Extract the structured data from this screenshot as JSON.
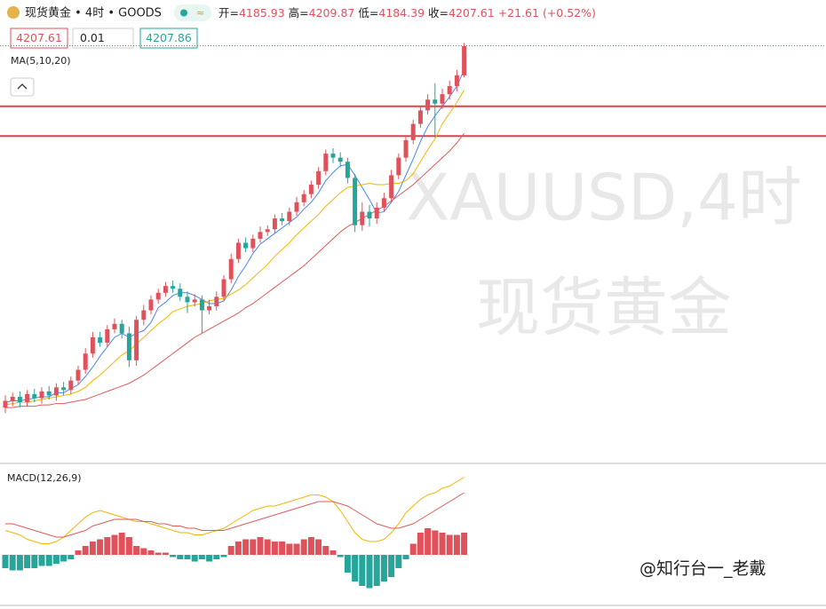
{
  "chart_data": {
    "type": "candlestick",
    "title": "现货黄金 • 4时 • GOODS",
    "labels": {
      "open": "开=",
      "high": "高=",
      "low": "低=",
      "close": "收="
    },
    "change": "+21.61",
    "change_pct": "(+0.52%)",
    "ask": 4207.86,
    "lot": 0.01,
    "up_color": "#e0525b",
    "down_color": "#26a69a",
    "ylim": [
      3900,
      4222
    ],
    "levels": [
      4163,
      4141
    ],
    "level_color": "#e0404a",
    "open": [
      3940,
      3945,
      3948,
      3944,
      3950,
      3947,
      3952,
      3949,
      3955,
      3953,
      3960,
      3968,
      3980,
      3992,
      3988,
      3998,
      4002,
      3995,
      3975,
      4005,
      4012,
      4020,
      4025,
      4030,
      4028,
      4022,
      4018,
      4020,
      4012,
      4015,
      4022,
      4035,
      4050,
      4062,
      4058,
      4065,
      4070,
      4072,
      4080,
      4078,
      4085,
      4092,
      4098,
      4105,
      4115,
      4128,
      4125,
      4122,
      4110,
      4075,
      4085,
      4080,
      4088,
      4095,
      4112,
      4125,
      4138,
      4150,
      4160,
      4168,
      4165,
      4172,
      4178,
      4185.93
    ],
    "high": [
      3949,
      3951,
      3952,
      3953,
      3954,
      3955,
      3956,
      3958,
      3959,
      3963,
      3971,
      3984,
      3996,
      3996,
      4001,
      4006,
      4005,
      4000,
      4008,
      4016,
      4023,
      4028,
      4033,
      4034,
      4032,
      4026,
      4024,
      4023,
      4020,
      4026,
      4038,
      4054,
      4065,
      4066,
      4068,
      4074,
      4075,
      4083,
      4084,
      4088,
      4096,
      4101,
      4108,
      4118,
      4131,
      4132,
      4129,
      4125,
      4113,
      4092,
      4090,
      4092,
      4099,
      4116,
      4128,
      4141,
      4153,
      4163,
      4172,
      4180,
      4176,
      4182,
      4190,
      4209.87
    ],
    "low": [
      3936,
      3941,
      3940,
      3941,
      3944,
      3943,
      3946,
      3945,
      3949,
      3950,
      3957,
      3965,
      3977,
      3985,
      3985,
      3995,
      3991,
      3970,
      3971,
      4001,
      4009,
      4017,
      4022,
      4025,
      4019,
      4010,
      4015,
      3995,
      4009,
      4012,
      4019,
      4032,
      4047,
      4055,
      4055,
      4062,
      4067,
      4069,
      4075,
      4075,
      4082,
      4089,
      4095,
      4102,
      4112,
      4121,
      4118,
      4106,
      4070,
      4071,
      4074,
      4076,
      4085,
      4092,
      4109,
      4122,
      4135,
      4147,
      4157,
      4140,
      4161,
      4168,
      4174,
      4184.39
    ],
    "close": [
      3945,
      3948,
      3944,
      3950,
      3947,
      3952,
      3949,
      3955,
      3953,
      3960,
      3968,
      3980,
      3992,
      3988,
      3998,
      4002,
      3995,
      3975,
      4005,
      4012,
      4020,
      4025,
      4030,
      4028,
      4022,
      4018,
      4020,
      4012,
      4015,
      4022,
      4035,
      4050,
      4062,
      4058,
      4065,
      4070,
      4072,
      4080,
      4078,
      4085,
      4092,
      4098,
      4105,
      4115,
      4128,
      4125,
      4122,
      4110,
      4075,
      4085,
      4080,
      4088,
      4095,
      4112,
      4125,
      4138,
      4150,
      4160,
      4168,
      4165,
      4172,
      4178,
      4186,
      4207.61
    ],
    "indicator": "MA(5,10,20)",
    "ma": [
      {
        "color": "#4a86e8",
        "values": [
          3944,
          3945,
          3945,
          3946,
          3947,
          3948,
          3948,
          3951,
          3951,
          3954,
          3957,
          3963,
          3970,
          3978,
          3985,
          3992,
          3995,
          3992,
          3995,
          3997,
          4003,
          4014,
          4018,
          4023,
          4025,
          4025,
          4023,
          4020,
          4017,
          4017,
          4019,
          4027,
          4037,
          4045,
          4054,
          4061,
          4065,
          4069,
          4073,
          4077,
          4081,
          4087,
          4092,
          4099,
          4108,
          4114,
          4119,
          4120,
          4112,
          4103,
          4094,
          4084,
          4085,
          4092,
          4100,
          4112,
          4124,
          4137,
          4148,
          4156,
          4163,
          4170,
          4178,
          4190
        ]
      },
      {
        "color": "#f2b600",
        "values": [
          3942,
          3943,
          3944,
          3944,
          3945,
          3946,
          3947,
          3948,
          3949,
          3950,
          3952,
          3955,
          3960,
          3964,
          3969,
          3974,
          3979,
          3982,
          3987,
          3992,
          3997,
          4002,
          4006,
          4011,
          4013,
          4015,
          4016,
          4017,
          4019,
          4020,
          4021,
          4024,
          4027,
          4031,
          4036,
          4041,
          4046,
          4052,
          4057,
          4062,
          4068,
          4073,
          4078,
          4083,
          4089,
          4094,
          4099,
          4103,
          4104,
          4105,
          4106,
          4105,
          4105,
          4106,
          4106,
          4108,
          4113,
          4122,
          4131,
          4139,
          4150,
          4158,
          4166,
          4175
        ]
      },
      {
        "color": "#e05a5a",
        "values": [
          3940,
          3940,
          3941,
          3941,
          3941,
          3942,
          3942,
          3943,
          3943,
          3944,
          3945,
          3946,
          3948,
          3950,
          3952,
          3954,
          3956,
          3958,
          3961,
          3964,
          3968,
          3972,
          3976,
          3980,
          3984,
          3988,
          3992,
          3995,
          3998,
          4001,
          4004,
          4007,
          4010,
          4014,
          4017,
          4021,
          4025,
          4029,
          4033,
          4037,
          4041,
          4045,
          4050,
          4055,
          4060,
          4065,
          4070,
          4074,
          4077,
          4080,
          4083,
          4086,
          4089,
          4093,
          4097,
          4101,
          4105,
          4110,
          4115,
          4120,
          4125,
          4130,
          4136,
          4143
        ]
      }
    ],
    "watermark": [
      "XAUUSD,4时",
      "现货黄金"
    ],
    "macd": {
      "title": "MACD(12,26,9)",
      "ylim": [
        -24,
        36
      ],
      "line": {
        "color": "#f2b600",
        "values": [
          11,
          10,
          9,
          7,
          6,
          5,
          5,
          6,
          8,
          11,
          14,
          17,
          19,
          20,
          19,
          18,
          17,
          16,
          15,
          15,
          14,
          13,
          12,
          11,
          10,
          10,
          9,
          9,
          10,
          11,
          12,
          14,
          16,
          18,
          20,
          21,
          22,
          22,
          23,
          24,
          25,
          26,
          27,
          27,
          26,
          24,
          20,
          15,
          10,
          7,
          6,
          6,
          7,
          10,
          14,
          19,
          22,
          25,
          27,
          28,
          30,
          31,
          33,
          35
        ]
      },
      "signal": {
        "color": "#e05a5a",
        "values": [
          14,
          14,
          13,
          12,
          11,
          10,
          9,
          8,
          8,
          9,
          10,
          11,
          13,
          14,
          15,
          16,
          16,
          16,
          16,
          15,
          15,
          14,
          14,
          13,
          13,
          12,
          12,
          11,
          11,
          11,
          11,
          12,
          13,
          14,
          15,
          16,
          17,
          18,
          19,
          20,
          21,
          22,
          23,
          24,
          24,
          24,
          23,
          22,
          20,
          18,
          16,
          14,
          13,
          12,
          12,
          13,
          14,
          16,
          18,
          20,
          22,
          24,
          26,
          28
        ]
      },
      "hist": [
        -6,
        -7,
        -7,
        -6,
        -6,
        -5,
        -5,
        -4,
        -3,
        -2,
        2,
        4,
        6,
        7,
        8,
        9,
        10,
        8,
        4,
        3,
        2,
        1,
        1,
        -1,
        -2,
        -2,
        -3,
        -2,
        -3,
        -2,
        -1,
        4,
        6,
        7,
        7,
        8,
        7,
        6,
        6,
        5,
        5,
        7,
        8,
        7,
        4,
        2,
        -1,
        -8,
        -12,
        -14,
        -15,
        -14,
        -12,
        -10,
        -6,
        -2,
        5,
        10,
        12,
        11,
        10,
        9,
        9,
        10
      ]
    },
    "credit": "@知行台一_老戴"
  }
}
